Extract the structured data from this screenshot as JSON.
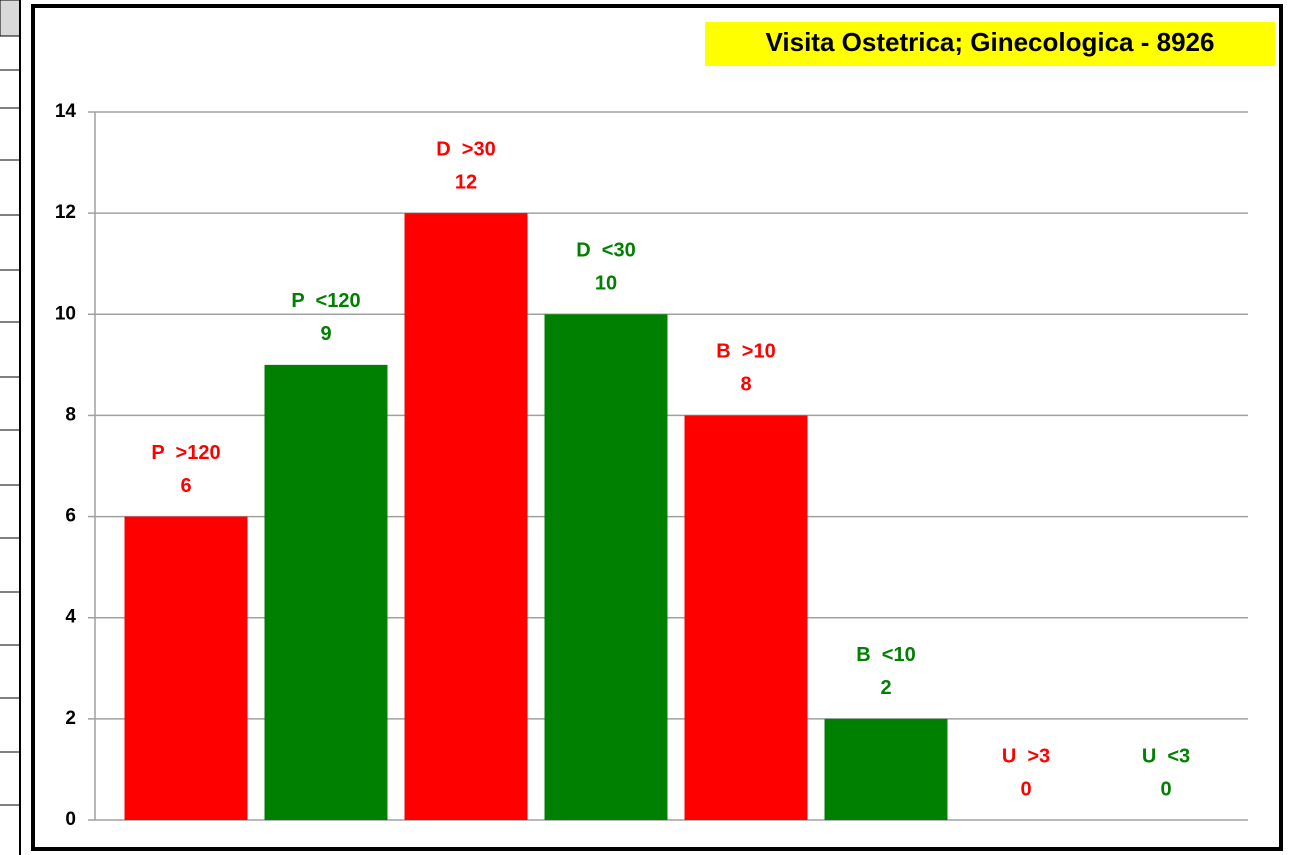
{
  "chart_data": {
    "type": "bar",
    "title": "Visita Ostetrica; Ginecologica - 8926",
    "categories": [
      "P  >120",
      "P  <120",
      "D  >30",
      "D  <30",
      "B  >10",
      "B  <10",
      "U  >3",
      "U  <3"
    ],
    "values": [
      6,
      9,
      12,
      10,
      8,
      2,
      0,
      0
    ],
    "colors": [
      "#ff0000",
      "#008000",
      "#ff0000",
      "#008000",
      "#ff0000",
      "#008000",
      "#ff0000",
      "#008000"
    ],
    "ylim": [
      0,
      14
    ],
    "yticks": [
      0,
      2,
      4,
      6,
      8,
      10,
      12,
      14
    ],
    "grid": true
  }
}
